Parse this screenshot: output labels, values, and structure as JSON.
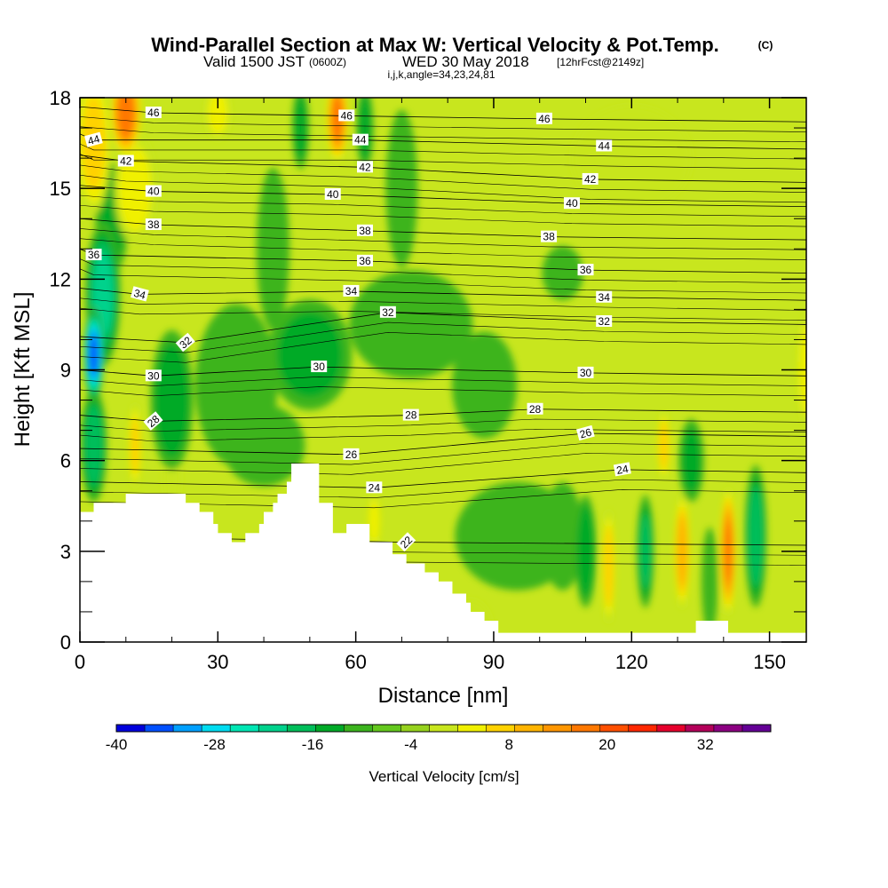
{
  "title": "Wind-Parallel Section at Max W: Vertical Velocity & Pot.Temp.",
  "title_mark": "(C)",
  "subtitle_valid": "Valid 1500 JST",
  "subtitle_utc": "(0600Z)",
  "subtitle_date": "WED 30 May 2018",
  "subtitle_fcst": "[12hrFcst@2149z]",
  "subtitle_indices": "i,j,k,angle=34,23,24,81",
  "chart_data": {
    "type": "heatmap",
    "xlabel": "Distance [nm]",
    "ylabel": "Height [Kft MSL]",
    "xlim": [
      0,
      158
    ],
    "ylim": [
      0,
      18
    ],
    "x_ticks": [
      0,
      30,
      60,
      90,
      120,
      150
    ],
    "y_ticks": [
      0,
      3,
      6,
      9,
      12,
      15,
      18
    ],
    "colorbar": {
      "label": "Vertical Velocity [cm/s]",
      "tick_labels": [
        "-40",
        "-28",
        "-16",
        "-4",
        "8",
        "20",
        "32"
      ],
      "tick_values": [
        -40,
        -28,
        -16,
        -4,
        8,
        20,
        32
      ],
      "range": [
        -40,
        40
      ],
      "step": 4,
      "colors": [
        "#0000dc",
        "#0050ff",
        "#00a0ff",
        "#00dcf0",
        "#00e6b4",
        "#00d28c",
        "#00be5a",
        "#00aa28",
        "#3cb41e",
        "#64c81e",
        "#96d21e",
        "#c8e61e",
        "#f0f000",
        "#ffd200",
        "#ffb400",
        "#ff9600",
        "#ff7800",
        "#ff5000",
        "#ff2800",
        "#e6002d",
        "#b4005a",
        "#8c0082",
        "#640096"
      ]
    },
    "vertical_velocity_cm_s": [
      {
        "x": 3,
        "y": 9.5,
        "value": -34,
        "sx": 2.2,
        "sy": 1.6
      },
      {
        "x": 5,
        "y": 11.5,
        "value": -18,
        "sx": 4,
        "sy": 2.5
      },
      {
        "x": 3,
        "y": 6.5,
        "value": -16,
        "sx": 3,
        "sy": 2
      },
      {
        "x": 7,
        "y": 14,
        "value": -10,
        "sx": 4,
        "sy": 2
      },
      {
        "x": 20,
        "y": 8,
        "value": -12,
        "sx": 5,
        "sy": 2.5
      },
      {
        "x": 50,
        "y": 9.5,
        "value": -10,
        "sx": 10,
        "sy": 2
      },
      {
        "x": 34,
        "y": 8.5,
        "value": -8,
        "sx": 10,
        "sy": 3
      },
      {
        "x": 40,
        "y": 6.5,
        "value": -8,
        "sx": 10,
        "sy": 1.5
      },
      {
        "x": 72,
        "y": 10.5,
        "value": -8,
        "sx": 15,
        "sy": 2
      },
      {
        "x": 88,
        "y": 8.5,
        "value": -7,
        "sx": 8,
        "sy": 2
      },
      {
        "x": 105,
        "y": 12.2,
        "value": -8,
        "sx": 5,
        "sy": 1
      },
      {
        "x": 42,
        "y": 13,
        "value": -8,
        "sx": 4,
        "sy": 3
      },
      {
        "x": 70,
        "y": 15,
        "value": -6,
        "sx": 4,
        "sy": 3
      },
      {
        "x": 48,
        "y": 17,
        "value": -10,
        "sx": 2,
        "sy": 1.5
      },
      {
        "x": 62,
        "y": 17,
        "value": -10,
        "sx": 2,
        "sy": 1.5
      },
      {
        "x": 95,
        "y": 3.5,
        "value": -8,
        "sx": 15,
        "sy": 2
      },
      {
        "x": 110,
        "y": 3,
        "value": -13,
        "sx": 2.5,
        "sy": 2
      },
      {
        "x": 123,
        "y": 3,
        "value": -14,
        "sx": 2,
        "sy": 2
      },
      {
        "x": 133,
        "y": 6,
        "value": -10,
        "sx": 3,
        "sy": 1.5
      },
      {
        "x": 147,
        "y": 3.5,
        "value": -16,
        "sx": 2.5,
        "sy": 2.5
      },
      {
        "x": 137,
        "y": 2,
        "value": -8,
        "sx": 2,
        "sy": 2
      },
      {
        "x": 105,
        "y": 3.5,
        "value": -8,
        "sx": 5,
        "sy": 2
      },
      {
        "x": 10,
        "y": 17.5,
        "value": 28,
        "sx": 3.5,
        "sy": 1.5
      },
      {
        "x": 3,
        "y": 16.5,
        "value": 14,
        "sx": 4,
        "sy": 2.5
      },
      {
        "x": 12,
        "y": 15,
        "value": 10,
        "sx": 5,
        "sy": 2
      },
      {
        "x": 56,
        "y": 17.3,
        "value": 26,
        "sx": 2.5,
        "sy": 1.5
      },
      {
        "x": 30,
        "y": 17.5,
        "value": 10,
        "sx": 3,
        "sy": 1
      },
      {
        "x": 12,
        "y": 6.5,
        "value": 14,
        "sx": 1.5,
        "sy": 1.5
      },
      {
        "x": 20,
        "y": 5.5,
        "value": 8,
        "sx": 2,
        "sy": 1.2
      },
      {
        "x": 64,
        "y": 4,
        "value": 12,
        "sx": 1.5,
        "sy": 1
      },
      {
        "x": 115,
        "y": 2.5,
        "value": 16,
        "sx": 1.5,
        "sy": 2
      },
      {
        "x": 127,
        "y": 6.5,
        "value": 16,
        "sx": 1.5,
        "sy": 1.2
      },
      {
        "x": 131,
        "y": 3,
        "value": 20,
        "sx": 1.8,
        "sy": 2
      },
      {
        "x": 141,
        "y": 3,
        "value": 26,
        "sx": 1.8,
        "sy": 2.2
      },
      {
        "x": 158,
        "y": 9,
        "value": 12,
        "sx": 2,
        "sy": 2
      },
      {
        "x": 120,
        "y": 16,
        "value": 6,
        "sx": 15,
        "sy": 2
      },
      {
        "x": 85,
        "y": 0.5,
        "value": 8,
        "sx": 5,
        "sy": 1
      }
    ],
    "terrain_kft": [
      [
        0,
        4.3
      ],
      [
        3,
        4.3
      ],
      [
        3,
        4.6
      ],
      [
        10,
        4.6
      ],
      [
        10,
        4.9
      ],
      [
        23,
        4.9
      ],
      [
        23,
        4.6
      ],
      [
        26,
        4.6
      ],
      [
        26,
        4.3
      ],
      [
        29,
        4.3
      ],
      [
        29,
        3.9
      ],
      [
        30,
        3.9
      ],
      [
        30,
        3.6
      ],
      [
        33,
        3.6
      ],
      [
        33,
        3.3
      ],
      [
        36,
        3.3
      ],
      [
        36,
        3.6
      ],
      [
        39,
        3.6
      ],
      [
        39,
        3.9
      ],
      [
        40,
        3.9
      ],
      [
        40,
        4.3
      ],
      [
        42,
        4.3
      ],
      [
        42,
        4.6
      ],
      [
        43,
        4.6
      ],
      [
        43,
        4.9
      ],
      [
        45,
        4.9
      ],
      [
        45,
        5.3
      ],
      [
        46,
        5.3
      ],
      [
        46,
        5.9
      ],
      [
        52,
        5.9
      ],
      [
        52,
        4.6
      ],
      [
        55,
        4.6
      ],
      [
        55,
        3.6
      ],
      [
        58,
        3.6
      ],
      [
        58,
        3.9
      ],
      [
        63,
        3.9
      ],
      [
        63,
        3.3
      ],
      [
        68,
        3.3
      ],
      [
        68,
        2.9
      ],
      [
        71,
        2.9
      ],
      [
        71,
        2.6
      ],
      [
        75,
        2.6
      ],
      [
        75,
        2.3
      ],
      [
        78,
        2.3
      ],
      [
        78,
        2.0
      ],
      [
        81,
        2.0
      ],
      [
        81,
        1.6
      ],
      [
        84,
        1.6
      ],
      [
        84,
        1.3
      ],
      [
        85,
        1.3
      ],
      [
        85,
        1.0
      ],
      [
        88,
        1.0
      ],
      [
        88,
        0.7
      ],
      [
        91,
        0.7
      ],
      [
        91,
        0.3
      ],
      [
        134,
        0.3
      ],
      [
        134,
        0.7
      ],
      [
        141,
        0.7
      ],
      [
        141,
        0.3
      ],
      [
        158,
        0.3
      ],
      [
        158,
        0
      ]
    ],
    "theta_contour_labels": [
      {
        "text": "46",
        "x": 16,
        "y": 17.5,
        "angle": 0
      },
      {
        "text": "46",
        "x": 58,
        "y": 17.4,
        "angle": 0
      },
      {
        "text": "46",
        "x": 101,
        "y": 17.3,
        "angle": 0
      },
      {
        "text": "44",
        "x": 3,
        "y": 16.6,
        "angle": -15
      },
      {
        "text": "44",
        "x": 61,
        "y": 16.6,
        "angle": 0
      },
      {
        "text": "44",
        "x": 114,
        "y": 16.4,
        "angle": 0
      },
      {
        "text": "42",
        "x": 10,
        "y": 15.9,
        "angle": 0
      },
      {
        "text": "42",
        "x": 62,
        "y": 15.7,
        "angle": 0
      },
      {
        "text": "42",
        "x": 111,
        "y": 15.3,
        "angle": 0
      },
      {
        "text": "40",
        "x": 16,
        "y": 14.9,
        "angle": 0
      },
      {
        "text": "40",
        "x": 55,
        "y": 14.8,
        "angle": 0
      },
      {
        "text": "40",
        "x": 107,
        "y": 14.5,
        "angle": 0
      },
      {
        "text": "38",
        "x": 16,
        "y": 13.8,
        "angle": 0
      },
      {
        "text": "38",
        "x": 62,
        "y": 13.6,
        "angle": 0
      },
      {
        "text": "38",
        "x": 102,
        "y": 13.4,
        "angle": 0
      },
      {
        "text": "36",
        "x": 3,
        "y": 12.8,
        "angle": 0
      },
      {
        "text": "36",
        "x": 62,
        "y": 12.6,
        "angle": 0
      },
      {
        "text": "36",
        "x": 110,
        "y": 12.3,
        "angle": 0
      },
      {
        "text": "34",
        "x": 13,
        "y": 11.5,
        "angle": 15
      },
      {
        "text": "34",
        "x": 59,
        "y": 11.6,
        "angle": 0
      },
      {
        "text": "34",
        "x": 114,
        "y": 11.4,
        "angle": 0
      },
      {
        "text": "32",
        "x": 23,
        "y": 9.9,
        "angle": -40
      },
      {
        "text": "32",
        "x": 67,
        "y": 10.9,
        "angle": 0
      },
      {
        "text": "32",
        "x": 114,
        "y": 10.6,
        "angle": 0
      },
      {
        "text": "30",
        "x": 16,
        "y": 8.8,
        "angle": 0
      },
      {
        "text": "30",
        "x": 52,
        "y": 9.1,
        "angle": 0
      },
      {
        "text": "30",
        "x": 110,
        "y": 8.9,
        "angle": 0
      },
      {
        "text": "28",
        "x": 16,
        "y": 7.3,
        "angle": -40
      },
      {
        "text": "28",
        "x": 72,
        "y": 7.5,
        "angle": 0
      },
      {
        "text": "28",
        "x": 99,
        "y": 7.7,
        "angle": 0
      },
      {
        "text": "26",
        "x": 59,
        "y": 6.2,
        "angle": 0
      },
      {
        "text": "26",
        "x": 110,
        "y": 6.9,
        "angle": -15
      },
      {
        "text": "24",
        "x": 64,
        "y": 5.1,
        "angle": 0
      },
      {
        "text": "24",
        "x": 118,
        "y": 5.7,
        "angle": -10
      },
      {
        "text": "22",
        "x": 71,
        "y": 3.3,
        "angle": -45
      }
    ]
  }
}
